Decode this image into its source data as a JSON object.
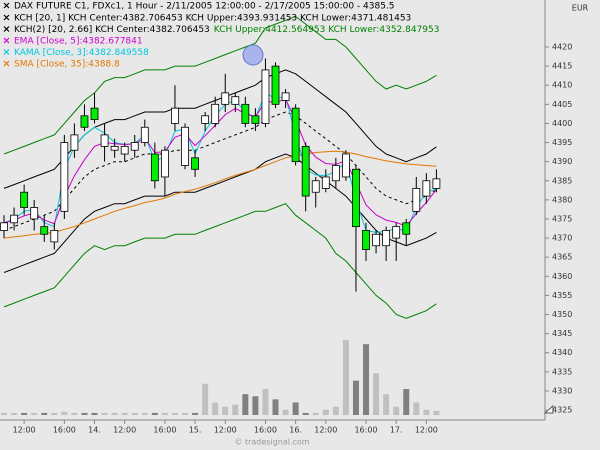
{
  "chart_data": {
    "type": "candlestick",
    "title": "DAX FUTURE C1, FDXc1, 1 Hour - 2/11/2005 12:00:00 - 2/17/2005 15:00:00 - 4385.5",
    "currency": "EUR",
    "watermark": "© tradesignal.com",
    "legend": [
      [
        {
          "text": "KCH [20, 1] KCH Center:4382.706453 KCH Upper:4393.931453 KCH Lower:4371.481453",
          "color": "#000000"
        }
      ],
      [
        {
          "text": "KCH(2) [20, 2.66] KCH Center:4382.706453",
          "color": "#000000"
        },
        {
          "text": "KCH Upper:4412.564953 KCH Lower:4352.847953",
          "color": "#008000"
        }
      ],
      [
        {
          "text": "EMA [Close, 5]:4382.677841",
          "color": "#cc00cc"
        }
      ],
      [
        {
          "text": "KAMA [Close, 3]:4382.849558",
          "color": "#00c8e0"
        }
      ],
      [
        {
          "text": "SMA [Close, 35]:4388.8",
          "color": "#e07800"
        }
      ]
    ],
    "up_color": "#ffffff",
    "down_color": "#00ee00",
    "volume_colors": [
      "#c0c0c0",
      "#808080"
    ],
    "xlim": [
      -0.4,
      53.8
    ],
    "ylim": [
      4322.4,
      4432.3
    ],
    "xticks": [
      {
        "value": 2,
        "label": "12:00"
      },
      {
        "value": 6,
        "label": "16:00"
      },
      {
        "value": 9,
        "label": "14."
      },
      {
        "value": 12,
        "label": "12:00"
      },
      {
        "value": 16,
        "label": "16:00"
      },
      {
        "value": 19,
        "label": "15."
      },
      {
        "value": 22,
        "label": "12:00"
      },
      {
        "value": 26,
        "label": "16:00"
      },
      {
        "value": 29,
        "label": "16."
      },
      {
        "value": 32,
        "label": "12:00"
      },
      {
        "value": 36,
        "label": "16:00"
      },
      {
        "value": 39,
        "label": "17."
      },
      {
        "value": 42,
        "label": "12:00"
      }
    ],
    "yticks": [
      4325,
      4330,
      4335,
      4340,
      4345,
      4350,
      4355,
      4360,
      4365,
      4370,
      4375,
      4380,
      4385,
      4390,
      4395,
      4400,
      4405,
      4410,
      4415,
      4420
    ],
    "x": [
      0,
      1,
      2,
      3,
      4,
      5,
      6,
      7,
      8,
      9,
      10,
      11,
      12,
      13,
      14,
      15,
      16,
      17,
      18,
      19,
      20,
      21,
      22,
      23,
      24,
      25,
      26,
      27,
      28,
      29,
      30,
      31,
      32,
      33,
      34,
      35,
      36,
      37,
      38,
      39,
      40,
      41,
      42,
      43
    ],
    "open": [
      4372,
      4374,
      4382,
      4375,
      4373,
      4369,
      4377,
      4393,
      4402,
      4404,
      4394,
      4393,
      4392,
      4393,
      4395,
      4392,
      4386,
      4400,
      4389,
      4391,
      4400,
      4400,
      4405,
      4405,
      4405,
      4402,
      4400,
      4415,
      4406,
      4404,
      4394,
      4382,
      4383,
      4385,
      4386,
      4388,
      4372,
      4368,
      4368,
      4370,
      4374,
      4377,
      4381,
      4383
    ],
    "high": [
      4376,
      4378,
      4384,
      4380,
      4376,
      4374,
      4397,
      4400,
      4405,
      4408,
      4400,
      4396,
      4395,
      4397,
      4401,
      4395,
      4394,
      4410,
      4400,
      4393,
      4403,
      4407,
      4413,
      4408,
      4407,
      4404,
      4417,
      4416,
      4409,
      4405,
      4395,
      4386,
      4388,
      4391,
      4393,
      4389,
      4374,
      4372,
      4373,
      4374,
      4375,
      4386,
      4387,
      4388
    ],
    "low": [
      4370,
      4372,
      4376,
      4372,
      4369,
      4367,
      4375,
      4391,
      4398,
      4400,
      4390,
      4391,
      4390,
      4391,
      4394,
      4383,
      4381,
      4398,
      4388,
      4386,
      4398,
      4399,
      4403,
      4403,
      4399,
      4398,
      4399,
      4404,
      4404,
      4389,
      4377,
      4378,
      4382,
      4383,
      4385,
      4356,
      4364,
      4366,
      4364,
      4364,
      4368,
      4376,
      4379,
      4382
    ],
    "close": [
      4374,
      4376,
      4378,
      4378,
      4371,
      4372,
      4395,
      4397,
      4399,
      4401,
      4397,
      4394,
      4394,
      4395,
      4399,
      4385,
      4393,
      4404,
      4399,
      4388,
      4402,
      4405,
      4408,
      4407,
      4400,
      4400,
      4414,
      4405,
      4408,
      4390,
      4381,
      4385,
      4386,
      4389,
      4392,
      4373,
      4367,
      4371,
      4372,
      4373,
      4371,
      4383,
      4385,
      4385.5
    ],
    "volume": [
      2,
      2,
      2,
      2,
      2,
      2,
      3,
      2,
      2,
      2,
      2,
      2,
      2,
      2,
      2,
      2,
      2,
      2,
      2,
      2,
      30,
      12,
      8,
      10,
      20,
      18,
      25,
      15,
      5,
      12,
      2,
      2,
      5,
      8,
      72,
      33,
      68,
      40,
      20,
      8,
      25,
      12,
      5,
      4
    ],
    "series": [
      {
        "color": "#000000",
        "dashed": true,
        "values": [
          4372,
          4373,
          4374,
          4375,
          4376,
          4377,
          4380,
          4383,
          4386,
          4388,
          4389,
          4390,
          4390,
          4391,
          4392,
          4392,
          4392,
          4393,
          4393,
          4393,
          4394,
          4395,
          4396,
          4397,
          4398,
          4399,
          4401,
          4402,
          4403,
          4402,
          4400,
          4398,
          4396,
          4394,
          4392,
          4389,
          4386,
          4383,
          4381,
          4380,
          4379,
          4380,
          4381,
          4382.7
        ]
      },
      {
        "color": "#000000",
        "values": [
          4383,
          4384,
          4385,
          4386,
          4387,
          4388,
          4391,
          4394,
          4397,
          4399,
          4400,
          4401,
          4401,
          4402,
          4403,
          4403,
          4403,
          4404,
          4404,
          4404,
          4405,
          4406,
          4407,
          4408,
          4409,
          4410,
          4412,
          4413,
          4414,
          4413,
          4411,
          4409,
          4407,
          4405,
          4403,
          4400,
          4397,
          4394,
          4392,
          4391,
          4390,
          4391,
          4392,
          4393.9
        ]
      },
      {
        "color": "#000000",
        "values": [
          4361,
          4362,
          4363,
          4364,
          4365,
          4366,
          4369,
          4372,
          4375,
          4377,
          4378,
          4379,
          4379,
          4380,
          4381,
          4381,
          4381,
          4382,
          4382,
          4382,
          4383,
          4384,
          4385,
          4386,
          4387,
          4388,
          4390,
          4391,
          4392,
          4391,
          4389,
          4387,
          4385,
          4383,
          4381,
          4378,
          4375,
          4372,
          4370,
          4369,
          4368,
          4369,
          4370,
          4371.5
        ]
      },
      {
        "color": "#008000",
        "values": [
          4392,
          4393,
          4394,
          4395,
          4396,
          4397,
          4400,
          4403,
          4406,
          4408,
          4411,
          4412,
          4412,
          4413,
          4414,
          4414,
          4414,
          4415,
          4415,
          4415,
          4416,
          4417,
          4418,
          4419,
          4420,
          4421,
          4425,
          4426,
          4427,
          4428,
          4426,
          4424,
          4422,
          4422,
          4420,
          4417,
          4414,
          4411,
          4409,
          4410,
          4409,
          4410,
          4411,
          4412.6
        ]
      },
      {
        "color": "#008000",
        "values": [
          4352,
          4353,
          4354,
          4355,
          4356,
          4357,
          4360,
          4363,
          4366,
          4368,
          4367,
          4368,
          4368,
          4369,
          4370,
          4370,
          4370,
          4371,
          4371,
          4371,
          4372,
          4373,
          4374,
          4375,
          4376,
          4377,
          4377,
          4378,
          4379,
          4376,
          4374,
          4372,
          4370,
          4366,
          4364,
          4361,
          4358,
          4355,
          4353,
          4350,
          4349,
          4350,
          4351,
          4352.8
        ]
      },
      {
        "color": "#e07800",
        "values": [
          4370,
          4370.3,
          4370.6,
          4371,
          4371.2,
          4371.5,
          4372.3,
          4373,
          4374,
          4375,
          4376,
          4377,
          4377.8,
          4378.5,
          4379.3,
          4379.8,
          4380.5,
          4381.5,
          4382.2,
          4382.8,
          4383.6,
          4384.5,
          4385.5,
          4386.4,
          4387.2,
          4388,
          4389,
          4390,
          4391,
          4391.5,
          4392,
          4392.4,
          4392.6,
          4392.7,
          4392.5,
          4392,
          4391.3,
          4390.8,
          4390.2,
          4389.8,
          4389.4,
          4389.2,
          4389,
          4388.8
        ]
      },
      {
        "color": "#00c8e0",
        "values": [
          4374,
          4375,
          4377,
          4377.5,
          4374,
          4373,
          4388,
          4394,
          4397,
          4399,
          4397.5,
          4395,
          4394.5,
          4394.8,
          4397,
          4390,
          4391.5,
          4398,
          4398.5,
          4392,
          4398,
          4402,
          4405,
          4406,
          4403,
          4401.5,
          4408,
          4406.5,
          4407,
          4397,
          4388,
          4386.5,
          4386.3,
          4387.5,
          4390,
          4380,
          4372,
          4371.5,
          4371.8,
          4372.5,
          4371.8,
          4378,
          4382,
          4382.8
        ]
      },
      {
        "color": "#cc00cc",
        "values": [
          4374,
          4374.7,
          4375.8,
          4376.5,
          4374.7,
          4373.8,
          4380.9,
          4386.3,
          4390.5,
          4394,
          4395,
          4394.7,
          4394.5,
          4394.7,
          4396.1,
          4392.4,
          4392.6,
          4396.4,
          4397.3,
          4394.2,
          4396.8,
          4399.5,
          4402.3,
          4403.9,
          4402.6,
          4401.7,
          4405.8,
          4405.5,
          4406.3,
          4400.9,
          4394.3,
          4391.2,
          4389.5,
          4389.3,
          4390.2,
          4384.5,
          4378.7,
          4376.1,
          4374.7,
          4374.1,
          4373.1,
          4376.4,
          4379.3,
          4382.7
        ]
      }
    ]
  }
}
